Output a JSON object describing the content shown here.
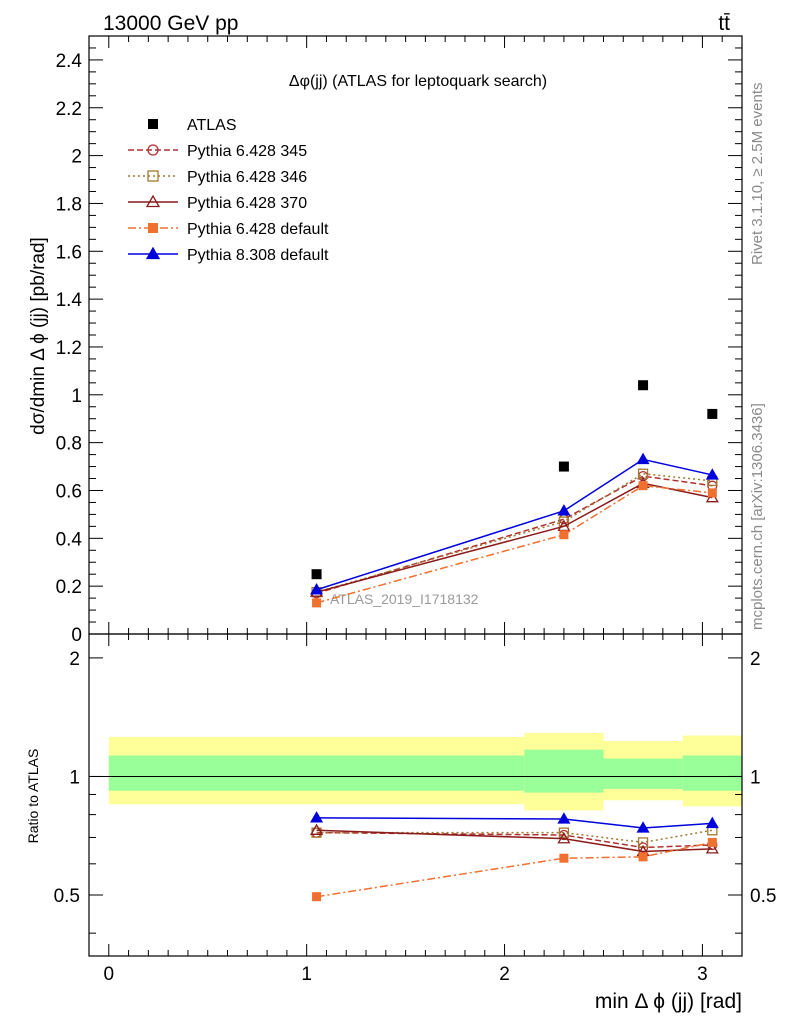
{
  "header": {
    "energy_label": "13000 GeV pp",
    "process_label": "tt̄"
  },
  "side_labels": {
    "rivet": "Rivet 3.1.10, ≥ 2.5M events",
    "mcplots": "mcplots.cern.ch [arXiv:1306.3436]"
  },
  "chart_data": [
    {
      "type": "scatter",
      "title": "Δφ(jj) (ATLAS for leptoquark search)",
      "xlabel": "min Δ ϕ (jj) [rad]",
      "ylabel": "dσ/dmin Δ ϕ (jj) [pb/rad]",
      "ylim": [
        0,
        2.5
      ],
      "xlim": [
        -0.1,
        3.2
      ],
      "yticks": [
        "0",
        "0.2",
        "0.4",
        "0.6",
        "0.8",
        "1",
        "1.2",
        "1.4",
        "1.6",
        "1.8",
        "2",
        "2.2",
        "2.4"
      ],
      "watermark": "ATLAS_2019_I1718132",
      "x": [
        1.05,
        2.3,
        2.7,
        3.05
      ],
      "series": [
        {
          "name": "ATLAS",
          "values": [
            0.25,
            0.7,
            1.04,
            0.92
          ],
          "color": "#000000",
          "marker": "square-filled",
          "line": "none"
        },
        {
          "name": "Pythia 6.428 345",
          "values": [
            0.17,
            0.48,
            0.66,
            0.62
          ],
          "color": "#b03030",
          "marker": "circle-open",
          "line": "dashed"
        },
        {
          "name": "Pythia 6.428 346",
          "values": [
            0.175,
            0.47,
            0.67,
            0.64
          ],
          "color": "#a07830",
          "marker": "square-open",
          "line": "dotted"
        },
        {
          "name": "Pythia 6.428 370",
          "values": [
            0.175,
            0.45,
            0.63,
            0.57
          ],
          "color": "#8b1a1a",
          "marker": "triangle-open",
          "line": "solid"
        },
        {
          "name": "Pythia 6.428 default",
          "values": [
            0.13,
            0.415,
            0.62,
            0.59
          ],
          "color": "#f07030",
          "marker": "square-filled",
          "line": "dashdot"
        },
        {
          "name": "Pythia 8.308 default",
          "values": [
            0.185,
            0.515,
            0.73,
            0.665
          ],
          "color": "#0000dd",
          "marker": "triangle-filled",
          "line": "solid"
        }
      ]
    },
    {
      "type": "scatter",
      "title": "",
      "xlabel": "min Δ ϕ (jj) [rad]",
      "ylabel": "Ratio to ATLAS",
      "ylim": [
        0.35,
        2.3
      ],
      "xlim": [
        -0.1,
        3.2
      ],
      "xticks": [
        "0",
        "1",
        "2",
        "3"
      ],
      "yticks": [
        "0.5",
        "1",
        "2"
      ],
      "bands": [
        {
          "x": [
            0.0,
            2.1
          ],
          "yellow": [
            0.85,
            1.26
          ],
          "green": [
            0.92,
            1.13
          ]
        },
        {
          "x": [
            2.1,
            2.5
          ],
          "yellow": [
            0.82,
            1.29
          ],
          "green": [
            0.91,
            1.17
          ]
        },
        {
          "x": [
            2.5,
            2.9
          ],
          "yellow": [
            0.87,
            1.23
          ],
          "green": [
            0.93,
            1.11
          ]
        },
        {
          "x": [
            2.9,
            3.2
          ],
          "yellow": [
            0.84,
            1.27
          ],
          "green": [
            0.92,
            1.13
          ]
        }
      ],
      "x": [
        1.05,
        2.3,
        2.7,
        3.05
      ],
      "series": [
        {
          "name": "Pythia 6.428 345",
          "values": [
            0.72,
            0.71,
            0.66,
            0.67
          ],
          "color": "#b03030",
          "marker": "circle-open",
          "line": "dashed"
        },
        {
          "name": "Pythia 6.428 346",
          "values": [
            0.72,
            0.72,
            0.68,
            0.73
          ],
          "color": "#a07830",
          "marker": "square-open",
          "line": "dotted"
        },
        {
          "name": "Pythia 6.428 370",
          "values": [
            0.73,
            0.695,
            0.645,
            0.655
          ],
          "color": "#8b1a1a",
          "marker": "triangle-open",
          "line": "solid"
        },
        {
          "name": "Pythia 6.428 default",
          "values": [
            0.495,
            0.62,
            0.625,
            0.68
          ],
          "color": "#f07030",
          "marker": "square-filled",
          "line": "dashdot"
        },
        {
          "name": "Pythia 8.308 default",
          "values": [
            0.785,
            0.78,
            0.74,
            0.76
          ],
          "color": "#0000dd",
          "marker": "triangle-filled",
          "line": "solid"
        }
      ]
    }
  ]
}
